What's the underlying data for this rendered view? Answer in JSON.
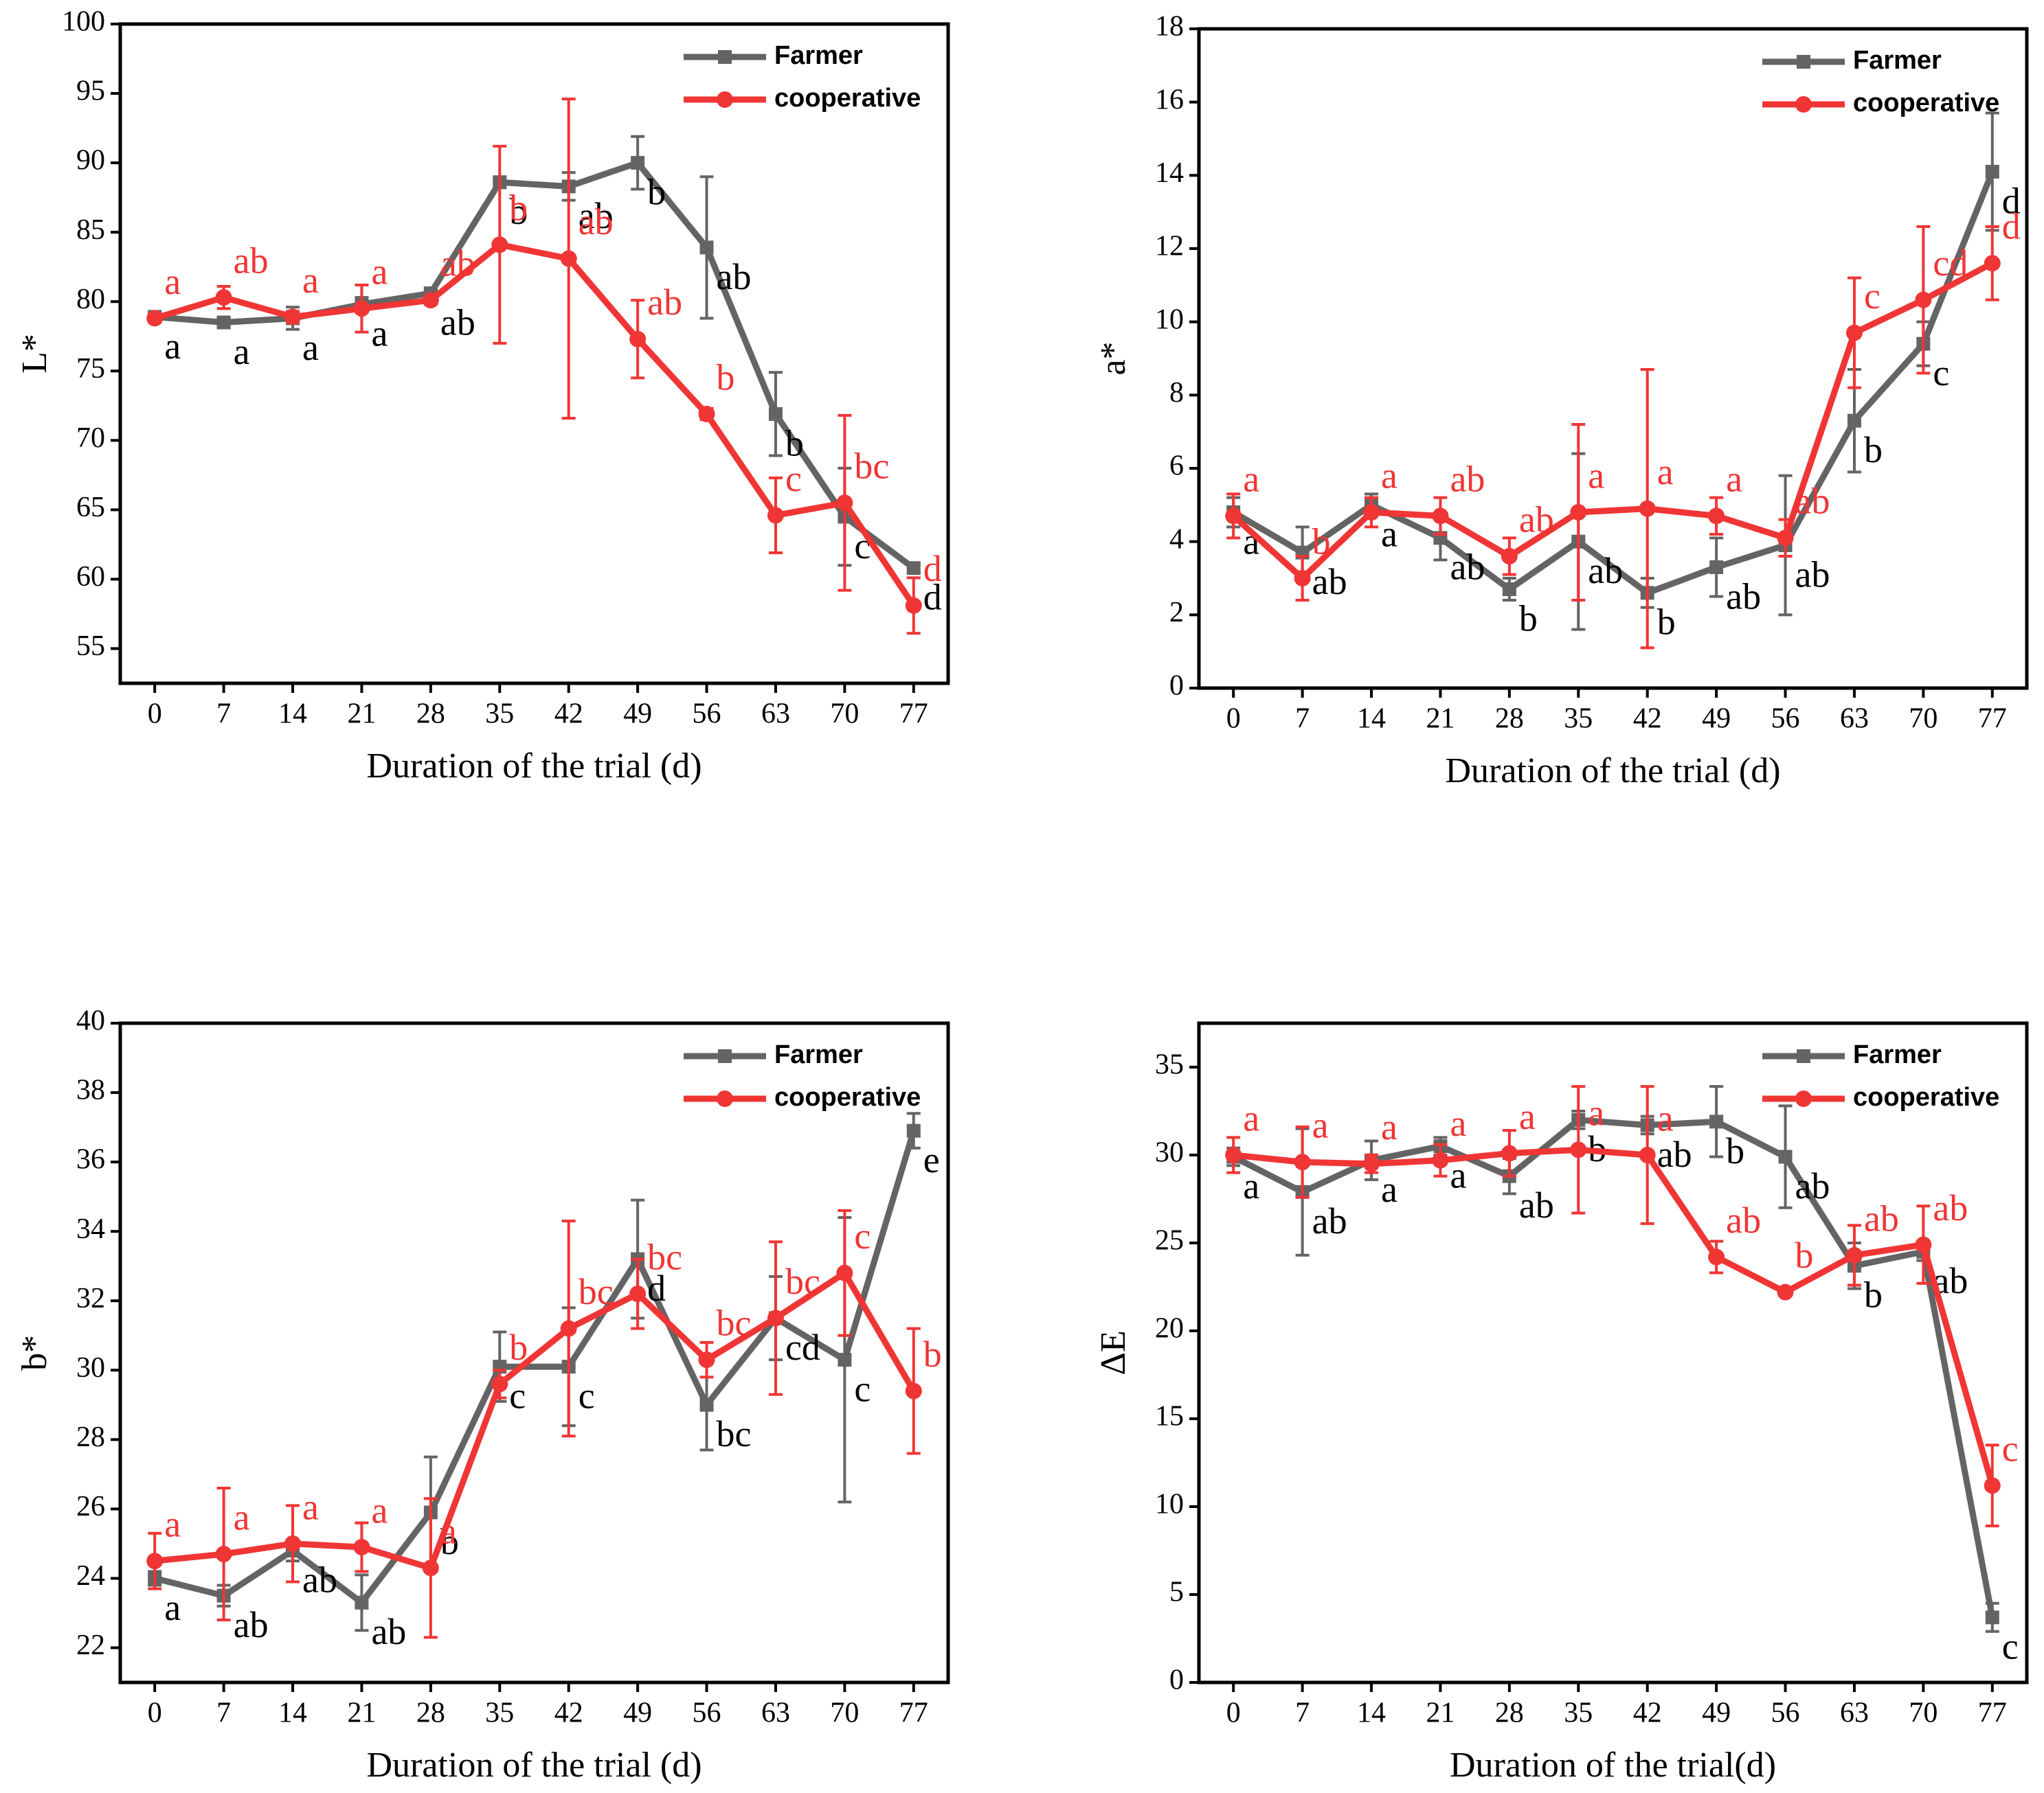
{
  "chart_data": [
    {
      "type": "line",
      "x_label": "Duration of the trial (d)",
      "y_label": "L*",
      "x": [
        0,
        7,
        14,
        21,
        28,
        35,
        42,
        49,
        56,
        63,
        70,
        77
      ],
      "xlim": [
        -3.5,
        80.5
      ],
      "xticks": [
        0,
        7,
        14,
        21,
        28,
        35,
        42,
        49,
        56,
        63,
        70,
        77
      ],
      "ylim": [
        52.5,
        100
      ],
      "yticks": [
        55,
        60,
        65,
        70,
        75,
        80,
        85,
        90,
        95,
        100
      ],
      "legend": "upper right",
      "series": [
        {
          "name": "Farmer",
          "color": "#646464",
          "marker": "square",
          "values": [
            78.9,
            78.5,
            78.8,
            79.8,
            80.6,
            88.6,
            88.3,
            90.0,
            83.9,
            71.9,
            64.5,
            60.8
          ],
          "errors": [
            0.3,
            0.3,
            0.8,
            0.5,
            0.3,
            0.4,
            1.0,
            1.9,
            5.1,
            3.0,
            3.5,
            0.3
          ],
          "letters": [
            "a",
            "a",
            "a",
            "a",
            "ab",
            "b",
            "ab",
            "b",
            "ab",
            "b",
            "c",
            "d"
          ]
        },
        {
          "name": "cooperative",
          "color": "#f03535",
          "marker": "circle",
          "values": [
            78.8,
            80.3,
            78.9,
            79.5,
            80.1,
            84.1,
            83.1,
            77.3,
            71.9,
            64.6,
            65.5,
            58.1
          ],
          "errors": [
            0.3,
            0.8,
            0.4,
            1.7,
            0.3,
            7.1,
            11.5,
            2.8,
            0.4,
            2.7,
            6.3,
            2.0
          ],
          "letters": [
            "a",
            "ab",
            "a",
            "a",
            "ab",
            "b",
            "ab",
            "ab",
            "b",
            "c",
            "bc",
            "d"
          ]
        }
      ]
    },
    {
      "type": "line",
      "x_label": "Duration of the trial (d)",
      "y_label": "a*",
      "x": [
        0,
        7,
        14,
        21,
        28,
        35,
        42,
        49,
        56,
        63,
        70,
        77
      ],
      "xlim": [
        -3.5,
        80.5
      ],
      "xticks": [
        0,
        7,
        14,
        21,
        28,
        35,
        42,
        49,
        56,
        63,
        70,
        77
      ],
      "ylim": [
        0,
        18
      ],
      "yticks": [
        0,
        2,
        4,
        6,
        8,
        10,
        12,
        14,
        16,
        18
      ],
      "legend": "upper right",
      "series": [
        {
          "name": "Farmer",
          "color": "#646464",
          "marker": "square",
          "values": [
            4.8,
            3.7,
            5.0,
            4.1,
            2.7,
            4.0,
            2.6,
            3.3,
            3.9,
            7.3,
            9.4,
            14.1
          ],
          "errors": [
            0.4,
            0.7,
            0.3,
            0.6,
            0.3,
            2.4,
            0.4,
            0.8,
            1.9,
            1.4,
            0.6,
            1.6
          ],
          "letters": [
            "a",
            "ab",
            "a",
            "ab",
            "b",
            "ab",
            "b",
            "ab",
            "ab",
            "b",
            "c",
            "d"
          ]
        },
        {
          "name": "cooperative",
          "color": "#f03535",
          "marker": "circle",
          "values": [
            4.7,
            3.0,
            4.8,
            4.7,
            3.6,
            4.8,
            4.9,
            4.7,
            4.1,
            9.7,
            10.6,
            11.6
          ],
          "errors": [
            0.6,
            0.6,
            0.4,
            0.5,
            0.5,
            2.4,
            3.8,
            0.5,
            0.5,
            1.5,
            2.0,
            1.0
          ],
          "letters": [
            "a",
            "b",
            "a",
            "ab",
            "ab",
            "a",
            "a",
            "a",
            "ab",
            "c",
            "cd",
            "d"
          ]
        }
      ]
    },
    {
      "type": "line",
      "x_label": "Duration of the trial (d)",
      "y_label": "b*",
      "x": [
        0,
        7,
        14,
        21,
        28,
        35,
        42,
        49,
        56,
        63,
        70,
        77
      ],
      "xlim": [
        -3.5,
        80.5
      ],
      "xticks": [
        0,
        7,
        14,
        21,
        28,
        35,
        42,
        49,
        56,
        63,
        70,
        77
      ],
      "ylim": [
        21,
        40
      ],
      "yticks": [
        22,
        24,
        26,
        28,
        30,
        32,
        34,
        36,
        38,
        40
      ],
      "legend": "upper right",
      "series": [
        {
          "name": "Farmer",
          "color": "#646464",
          "marker": "square",
          "values": [
            24.0,
            23.5,
            24.8,
            23.3,
            25.9,
            30.1,
            30.1,
            33.2,
            29.0,
            31.5,
            30.3,
            36.9
          ],
          "errors": [
            0.2,
            0.3,
            0.3,
            0.8,
            1.6,
            1.0,
            1.7,
            1.7,
            1.3,
            1.2,
            4.1,
            0.5
          ],
          "letters": [
            "a",
            "ab",
            "ab",
            "ab",
            "b",
            "c",
            "c",
            "d",
            "bc",
            "cd",
            "c",
            "e"
          ]
        },
        {
          "name": "cooperative",
          "color": "#f03535",
          "marker": "circle",
          "values": [
            24.5,
            24.7,
            25.0,
            24.9,
            24.3,
            29.6,
            31.2,
            32.2,
            30.3,
            31.5,
            32.8,
            29.4
          ],
          "errors": [
            0.8,
            1.9,
            1.1,
            0.7,
            2.0,
            0.4,
            3.1,
            1.0,
            0.5,
            2.2,
            1.8,
            1.8
          ],
          "letters": [
            "a",
            "a",
            "a",
            "a",
            "a",
            "b",
            "bc",
            "bc",
            "bc",
            "bc",
            "c",
            "b"
          ]
        }
      ]
    },
    {
      "type": "line",
      "x_label": "Duration of the trial(d)",
      "y_label": "ΔE",
      "x": [
        0,
        7,
        14,
        21,
        28,
        35,
        42,
        49,
        56,
        63,
        70,
        77
      ],
      "xlim": [
        -3.5,
        80.5
      ],
      "xticks": [
        0,
        7,
        14,
        21,
        28,
        35,
        42,
        49,
        56,
        63,
        70,
        77
      ],
      "ylim": [
        0,
        37.5
      ],
      "yticks": [
        0,
        5,
        10,
        15,
        20,
        25,
        30,
        35
      ],
      "legend": "upper right",
      "series": [
        {
          "name": "Farmer",
          "color": "#646464",
          "marker": "square",
          "values": [
            29.9,
            27.9,
            29.7,
            30.5,
            28.8,
            32.0,
            31.7,
            31.9,
            29.9,
            23.7,
            24.5,
            3.7
          ],
          "errors": [
            0.5,
            3.6,
            1.1,
            0.5,
            1.0,
            0.5,
            0.5,
            2.0,
            2.9,
            1.3,
            0.5,
            0.8
          ],
          "letters": [
            "a",
            "ab",
            "a",
            "a",
            "ab",
            "b",
            "ab",
            "b",
            "ab",
            "b",
            "ab",
            "c"
          ]
        },
        {
          "name": "cooperative",
          "color": "#f03535",
          "marker": "circle",
          "values": [
            30.0,
            29.6,
            29.5,
            29.7,
            30.1,
            30.3,
            30.0,
            24.2,
            22.2,
            24.3,
            24.9,
            11.2
          ],
          "errors": [
            1.0,
            2.0,
            0.5,
            0.9,
            1.3,
            3.6,
            3.9,
            0.9,
            0.2,
            1.7,
            2.2,
            2.3
          ],
          "letters": [
            "a",
            "a",
            "a",
            "a",
            "a",
            "a",
            "a",
            "ab",
            "b",
            "ab",
            "ab",
            "c"
          ]
        }
      ]
    }
  ]
}
